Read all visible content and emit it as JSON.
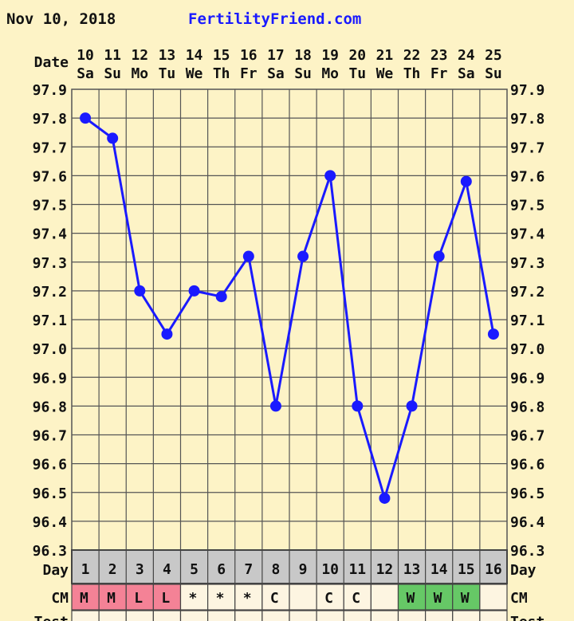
{
  "header": {
    "date": "Nov 10, 2018",
    "site": "FertilityFriend.com"
  },
  "labels": {
    "date": "Date",
    "day": "Day",
    "cm": "CM",
    "test": "Test"
  },
  "colors": {
    "background": "#fdf3c6",
    "line": "#1a1aff",
    "grid": "#555555",
    "day_row": "#c8c8c8",
    "cell": "#fdf5e1",
    "menstrual": "#f48296",
    "watery": "#66c866",
    "site_link": "#1a1aff"
  },
  "chart_data": {
    "type": "line",
    "dates": [
      "10",
      "11",
      "12",
      "13",
      "14",
      "15",
      "16",
      "17",
      "18",
      "19",
      "20",
      "21",
      "22",
      "23",
      "24",
      "25"
    ],
    "weekdays": [
      "Sa",
      "Su",
      "Mo",
      "Tu",
      "We",
      "Th",
      "Fr",
      "Sa",
      "Su",
      "Mo",
      "Tu",
      "We",
      "Th",
      "Fr",
      "Sa",
      "Su"
    ],
    "cycle_days": [
      "1",
      "2",
      "3",
      "4",
      "5",
      "6",
      "7",
      "8",
      "9",
      "10",
      "11",
      "12",
      "13",
      "14",
      "15",
      "16"
    ],
    "temperatures": [
      97.8,
      97.73,
      97.2,
      97.05,
      97.2,
      97.18,
      97.32,
      96.8,
      97.32,
      97.6,
      96.8,
      96.48,
      96.8,
      97.32,
      97.58,
      97.05
    ],
    "ylim": [
      96.3,
      97.9
    ],
    "yticks": [
      "97.9",
      "97.8",
      "97.7",
      "97.6",
      "97.5",
      "97.4",
      "97.3",
      "97.2",
      "97.1",
      "97.0",
      "96.9",
      "96.8",
      "96.7",
      "96.6",
      "96.5",
      "96.4",
      "96.3"
    ],
    "grid": true,
    "cm": [
      {
        "text": "M",
        "type": "menstrual"
      },
      {
        "text": "M",
        "type": "menstrual"
      },
      {
        "text": "L",
        "type": "menstrual"
      },
      {
        "text": "L",
        "type": "menstrual"
      },
      {
        "text": "*",
        "type": "none"
      },
      {
        "text": "*",
        "type": "none"
      },
      {
        "text": "*",
        "type": "none"
      },
      {
        "text": "C",
        "type": "none"
      },
      {
        "text": "",
        "type": "none"
      },
      {
        "text": "C",
        "type": "none"
      },
      {
        "text": "C",
        "type": "none"
      },
      {
        "text": "",
        "type": "none"
      },
      {
        "text": "W",
        "type": "watery"
      },
      {
        "text": "W",
        "type": "watery"
      },
      {
        "text": "W",
        "type": "watery"
      },
      {
        "text": "",
        "type": "none"
      }
    ],
    "test": [
      "-",
      "",
      "",
      "",
      "",
      "",
      "",
      "",
      "",
      "",
      "",
      "",
      "",
      "",
      "",
      ""
    ]
  }
}
